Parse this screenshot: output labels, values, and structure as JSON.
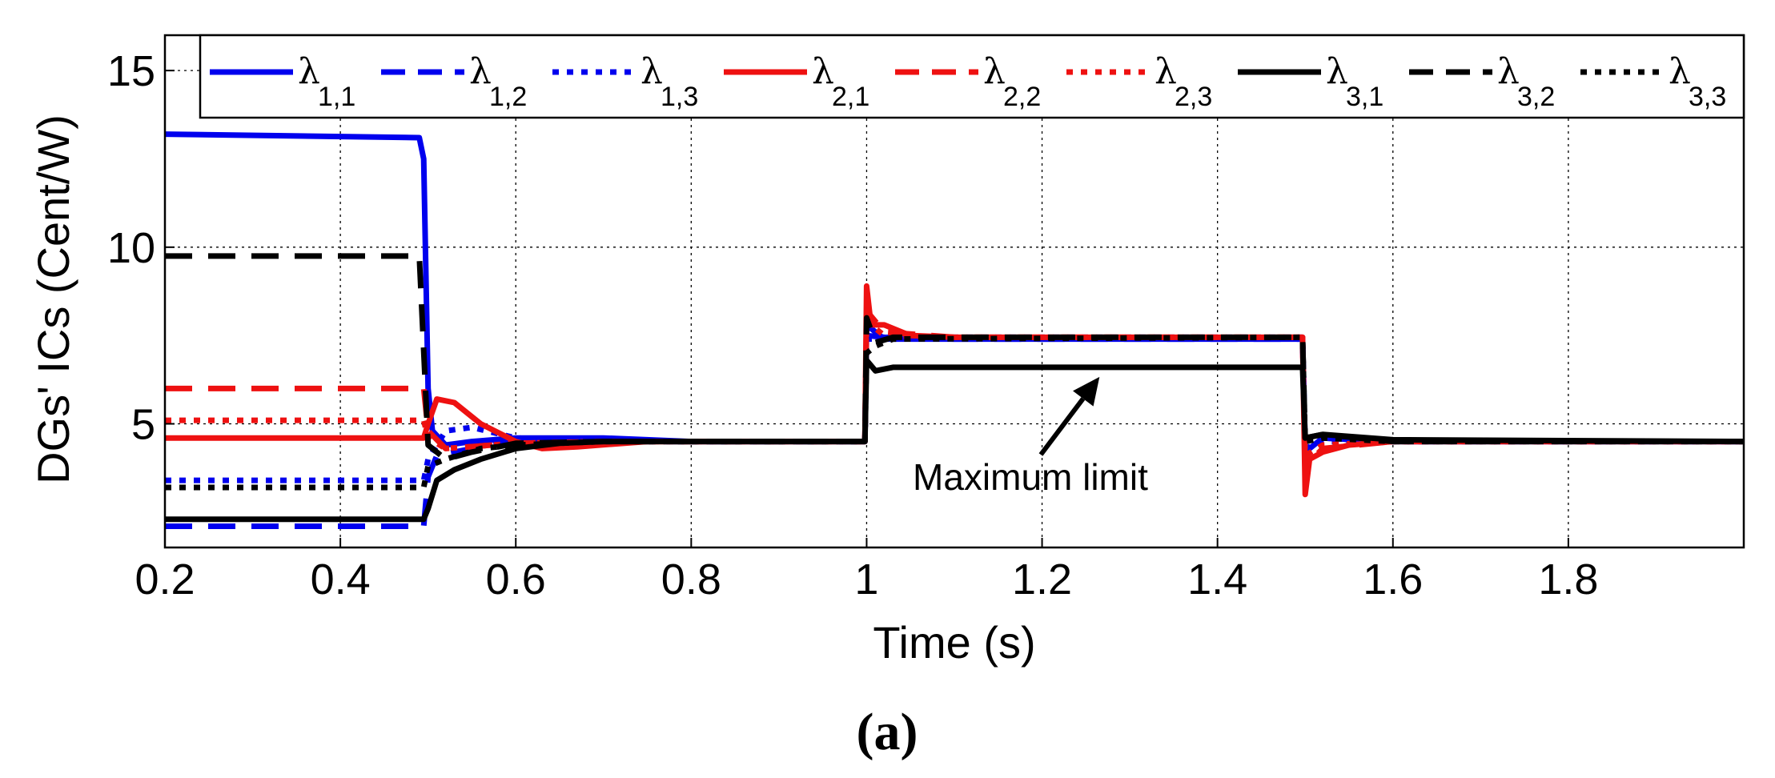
{
  "chart_data": {
    "type": "line",
    "title": "",
    "xlabel": "Time (s)",
    "ylabel": "DGs' ICs (Cent/W)",
    "xlim": [
      0.2,
      2.0
    ],
    "ylim": [
      1.5,
      16.0
    ],
    "grid": true,
    "x_ticks": [
      0.2,
      0.4,
      0.6,
      0.8,
      1.0,
      1.2,
      1.4,
      1.6,
      1.8
    ],
    "x_tick_labels": [
      "0.2",
      "0.4",
      "0.6",
      "0.8",
      "1",
      "1.2",
      "1.4",
      "1.6",
      "1.8"
    ],
    "y_ticks": [
      5,
      10,
      15
    ],
    "y_tick_labels": [
      "5",
      "10",
      "15"
    ],
    "legend_position": "top",
    "series": [
      {
        "name": "λ",
        "subscript": "1,1",
        "color": "#0000ee",
        "style": "solid",
        "points": [
          [
            0.2,
            13.2
          ],
          [
            0.49,
            13.1
          ],
          [
            0.495,
            12.5
          ],
          [
            0.5,
            6.0
          ],
          [
            0.505,
            4.8
          ],
          [
            0.52,
            4.4
          ],
          [
            0.55,
            4.5
          ],
          [
            0.6,
            4.6
          ],
          [
            0.7,
            4.6
          ],
          [
            0.8,
            4.5
          ],
          [
            0.998,
            4.5
          ],
          [
            1.0,
            7.8
          ],
          [
            1.02,
            7.4
          ],
          [
            1.1,
            7.4
          ],
          [
            1.4,
            7.4
          ],
          [
            1.497,
            7.4
          ],
          [
            1.5,
            4.2
          ],
          [
            1.52,
            4.6
          ],
          [
            1.6,
            4.5
          ],
          [
            2.0,
            4.5
          ]
        ]
      },
      {
        "name": "λ",
        "subscript": "1,2",
        "color": "#0000ee",
        "style": "dashed",
        "points": [
          [
            0.2,
            2.1
          ],
          [
            0.495,
            2.1
          ],
          [
            0.5,
            3.5
          ],
          [
            0.51,
            4.1
          ],
          [
            0.55,
            4.3
          ],
          [
            0.6,
            4.5
          ],
          [
            0.7,
            4.5
          ],
          [
            0.998,
            4.5
          ],
          [
            1.0,
            7.5
          ],
          [
            1.02,
            7.45
          ],
          [
            1.1,
            7.4
          ],
          [
            1.4,
            7.4
          ],
          [
            1.497,
            7.4
          ],
          [
            1.5,
            4.4
          ],
          [
            1.52,
            4.6
          ],
          [
            1.6,
            4.5
          ],
          [
            2.0,
            4.5
          ]
        ]
      },
      {
        "name": "λ",
        "subscript": "1,3",
        "color": "#0000ee",
        "style": "dotted",
        "points": [
          [
            0.2,
            3.4
          ],
          [
            0.495,
            3.4
          ],
          [
            0.5,
            4.0
          ],
          [
            0.52,
            4.8
          ],
          [
            0.55,
            4.9
          ],
          [
            0.6,
            4.6
          ],
          [
            0.7,
            4.5
          ],
          [
            0.998,
            4.5
          ],
          [
            1.0,
            7.4
          ],
          [
            1.1,
            7.45
          ],
          [
            1.4,
            7.45
          ],
          [
            1.497,
            7.45
          ],
          [
            1.5,
            4.3
          ],
          [
            1.52,
            4.5
          ],
          [
            1.6,
            4.5
          ],
          [
            2.0,
            4.5
          ]
        ]
      },
      {
        "name": "λ",
        "subscript": "2,1",
        "color": "#ee1111",
        "style": "solid",
        "points": [
          [
            0.2,
            4.6
          ],
          [
            0.495,
            4.6
          ],
          [
            0.5,
            5.0
          ],
          [
            0.51,
            5.7
          ],
          [
            0.53,
            5.6
          ],
          [
            0.56,
            5.0
          ],
          [
            0.6,
            4.5
          ],
          [
            0.63,
            4.3
          ],
          [
            0.67,
            4.35
          ],
          [
            0.75,
            4.5
          ],
          [
            0.998,
            4.5
          ],
          [
            1.0,
            8.9
          ],
          [
            1.005,
            7.8
          ],
          [
            1.02,
            7.8
          ],
          [
            1.05,
            7.5
          ],
          [
            1.1,
            7.45
          ],
          [
            1.497,
            7.45
          ],
          [
            1.5,
            3.0
          ],
          [
            1.505,
            4.0
          ],
          [
            1.52,
            4.2
          ],
          [
            1.55,
            4.4
          ],
          [
            1.6,
            4.5
          ],
          [
            2.0,
            4.5
          ]
        ]
      },
      {
        "name": "λ",
        "subscript": "2,2",
        "color": "#ee1111",
        "style": "dashed",
        "points": [
          [
            0.2,
            6.0
          ],
          [
            0.495,
            6.0
          ],
          [
            0.5,
            4.8
          ],
          [
            0.52,
            4.3
          ],
          [
            0.6,
            4.45
          ],
          [
            0.7,
            4.5
          ],
          [
            0.998,
            4.5
          ],
          [
            1.0,
            8.2
          ],
          [
            1.02,
            7.6
          ],
          [
            1.1,
            7.45
          ],
          [
            1.497,
            7.45
          ],
          [
            1.5,
            3.8
          ],
          [
            1.52,
            4.3
          ],
          [
            1.6,
            4.5
          ],
          [
            2.0,
            4.5
          ]
        ]
      },
      {
        "name": "λ",
        "subscript": "2,3",
        "color": "#ee1111",
        "style": "dotted",
        "points": [
          [
            0.2,
            5.1
          ],
          [
            0.495,
            5.1
          ],
          [
            0.5,
            4.6
          ],
          [
            0.52,
            4.3
          ],
          [
            0.6,
            4.45
          ],
          [
            0.7,
            4.5
          ],
          [
            0.998,
            4.5
          ],
          [
            1.0,
            7.9
          ],
          [
            1.02,
            7.5
          ],
          [
            1.1,
            7.45
          ],
          [
            1.497,
            7.45
          ],
          [
            1.5,
            4.1
          ],
          [
            1.52,
            4.4
          ],
          [
            1.6,
            4.5
          ],
          [
            2.0,
            4.5
          ]
        ]
      },
      {
        "name": "λ",
        "subscript": "3,1",
        "color": "#000000",
        "style": "solid",
        "points": [
          [
            0.2,
            2.3
          ],
          [
            0.495,
            2.3
          ],
          [
            0.5,
            2.6
          ],
          [
            0.51,
            3.4
          ],
          [
            0.53,
            3.7
          ],
          [
            0.56,
            4.0
          ],
          [
            0.6,
            4.3
          ],
          [
            0.65,
            4.45
          ],
          [
            0.7,
            4.5
          ],
          [
            0.998,
            4.5
          ],
          [
            1.0,
            6.8
          ],
          [
            1.01,
            6.5
          ],
          [
            1.03,
            6.6
          ],
          [
            1.497,
            6.6
          ],
          [
            1.5,
            4.6
          ],
          [
            1.52,
            4.7
          ],
          [
            1.6,
            4.55
          ],
          [
            2.0,
            4.5
          ]
        ]
      },
      {
        "name": "λ",
        "subscript": "3,2",
        "color": "#000000",
        "style": "dashed",
        "points": [
          [
            0.2,
            9.75
          ],
          [
            0.49,
            9.75
          ],
          [
            0.5,
            4.4
          ],
          [
            0.52,
            4.0
          ],
          [
            0.55,
            4.2
          ],
          [
            0.6,
            4.45
          ],
          [
            0.7,
            4.5
          ],
          [
            0.998,
            4.5
          ],
          [
            1.0,
            8.0
          ],
          [
            1.01,
            7.3
          ],
          [
            1.03,
            7.45
          ],
          [
            1.497,
            7.45
          ],
          [
            1.5,
            4.6
          ],
          [
            1.52,
            4.7
          ],
          [
            1.6,
            4.5
          ],
          [
            2.0,
            4.5
          ]
        ]
      },
      {
        "name": "λ",
        "subscript": "3,3",
        "color": "#000000",
        "style": "dotted",
        "points": [
          [
            0.2,
            3.2
          ],
          [
            0.495,
            3.2
          ],
          [
            0.5,
            3.8
          ],
          [
            0.52,
            4.0
          ],
          [
            0.56,
            4.3
          ],
          [
            0.6,
            4.4
          ],
          [
            0.7,
            4.5
          ],
          [
            0.998,
            4.5
          ],
          [
            1.0,
            7.0
          ],
          [
            1.01,
            7.2
          ],
          [
            1.03,
            7.4
          ],
          [
            1.497,
            7.45
          ],
          [
            1.5,
            4.5
          ],
          [
            1.52,
            4.6
          ],
          [
            1.6,
            4.5
          ],
          [
            2.0,
            4.5
          ]
        ]
      }
    ],
    "annotations": [
      {
        "text": "Maximum limit",
        "points_to": [
          1.26,
          6.6
        ]
      }
    ],
    "panel_label": "(a)"
  }
}
